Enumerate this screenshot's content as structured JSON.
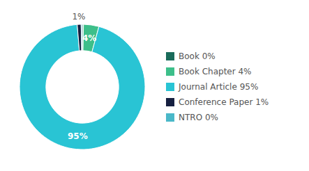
{
  "chart_data": {
    "type": "donut",
    "categories": [
      "Book 0%",
      "Book Chapter 4%",
      "Journal Article 95%",
      "Conference Paper 1%",
      "NTRO 0%"
    ],
    "values": [
      0.3,
      4,
      95,
      1,
      0.3
    ],
    "value_labels": [
      null,
      "4%",
      "95%",
      "1%",
      null
    ],
    "colors": [
      "#1a6b5a",
      "#3dbf8a",
      "#29c4d4",
      "#162040",
      "#4ab8c8"
    ],
    "legend": "right"
  }
}
